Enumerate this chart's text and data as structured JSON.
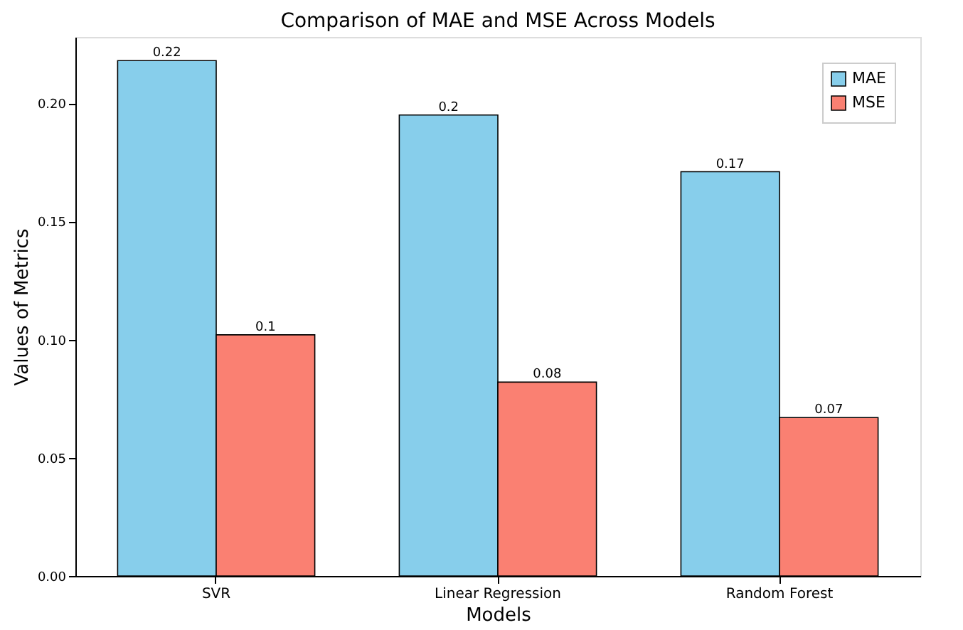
{
  "chart_data": {
    "type": "bar",
    "title": "Comparison of MAE and MSE Across Models",
    "xlabel": "Models",
    "ylabel": "Values of Metrics",
    "categories": [
      "SVR",
      "Linear Regression",
      "Random Forest"
    ],
    "series": [
      {
        "name": "MAE",
        "color": "#87ceeb",
        "values": [
          0.218,
          0.195,
          0.171
        ],
        "value_labels": [
          "0.22",
          "0.2",
          "0.17"
        ]
      },
      {
        "name": "MSE",
        "color": "#fa8072",
        "values": [
          0.102,
          0.082,
          0.067
        ],
        "value_labels": [
          "0.1",
          "0.08",
          "0.07"
        ]
      }
    ],
    "ylim": [
      0,
      0.228
    ],
    "yticks": [
      {
        "value": 0,
        "label": "0.00"
      },
      {
        "value": 0.05,
        "label": "0.05"
      },
      {
        "value": 0.1,
        "label": "0.10"
      },
      {
        "value": 0.15,
        "label": "0.15"
      },
      {
        "value": 0.2,
        "label": "0.20"
      }
    ],
    "grid": false,
    "legend": "top right"
  }
}
